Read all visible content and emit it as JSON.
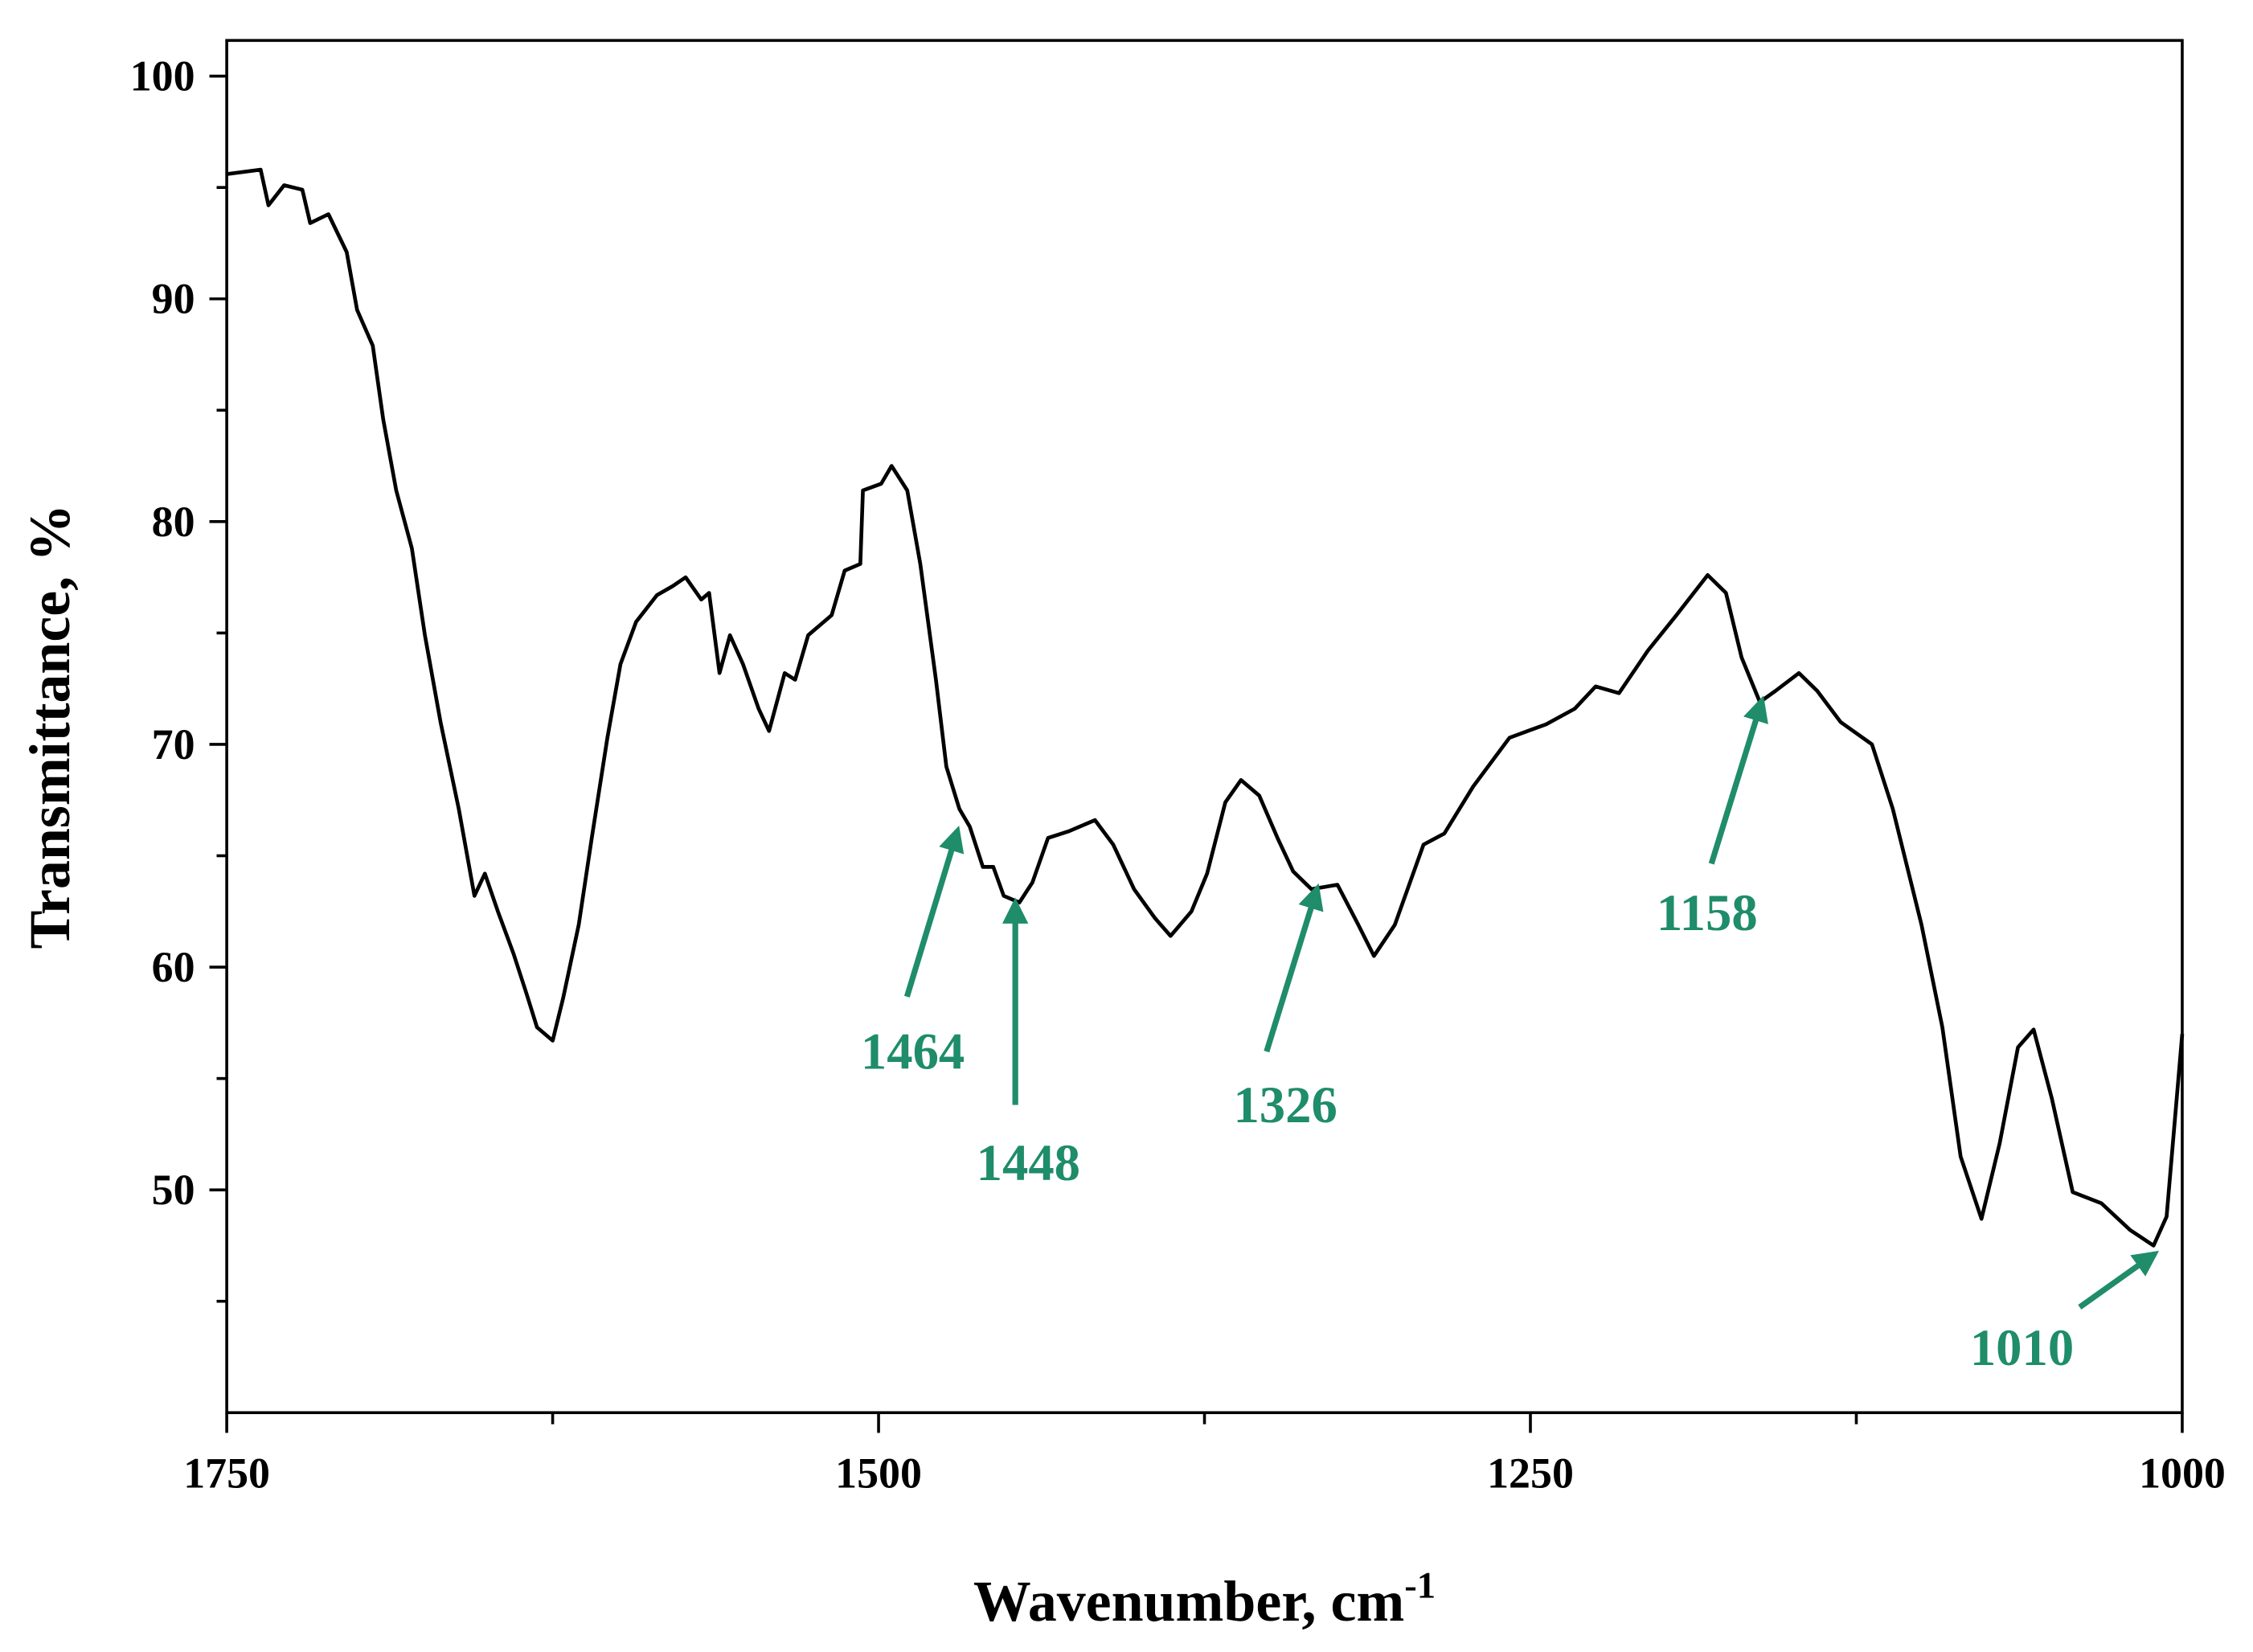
{
  "chart_data": {
    "type": "line",
    "x_label": "Wavenumber, cm",
    "x_label_sup": "-1",
    "y_label": "Transmittance, %",
    "xlim": [
      1750,
      1000
    ],
    "ylim": [
      40,
      101.6
    ],
    "xticks": [
      1750,
      1500,
      1250,
      1000
    ],
    "xticks_minor": [
      1625,
      1375,
      1125
    ],
    "yticks": [
      50,
      60,
      70,
      80,
      90,
      100
    ],
    "yticks_minor": [
      45,
      55,
      65,
      75,
      85,
      95
    ],
    "series": [
      {
        "color": "#000000",
        "x": [
          1750,
          1737,
          1734,
          1728,
          1721,
          1718,
          1711,
          1704,
          1700,
          1694,
          1690,
          1685,
          1679,
          1674,
          1668,
          1661,
          1655,
          1651,
          1646,
          1640,
          1635,
          1631,
          1625,
          1621,
          1615,
          1610,
          1604,
          1599,
          1593,
          1585,
          1579,
          1574,
          1568,
          1565,
          1561,
          1557,
          1552,
          1546,
          1542,
          1536,
          1532,
          1527,
          1518,
          1513,
          1507,
          1506,
          1499,
          1495,
          1489,
          1484,
          1478,
          1474,
          1469,
          1465,
          1460,
          1456,
          1452,
          1446,
          1441,
          1435,
          1427,
          1417,
          1410,
          1402,
          1394,
          1388,
          1380,
          1374,
          1367,
          1361,
          1354,
          1347,
          1341,
          1334,
          1324,
          1316,
          1310,
          1302,
          1291,
          1283,
          1272,
          1258,
          1244,
          1233,
          1225,
          1216,
          1205,
          1194,
          1182,
          1175,
          1169,
          1162,
          1156,
          1147,
          1140,
          1131,
          1119,
          1111,
          1100,
          1092,
          1085,
          1077,
          1070,
          1063,
          1057,
          1050,
          1042,
          1031,
          1020,
          1011,
          1006,
          1000
        ],
        "values": [
          95.6,
          95.8,
          94.2,
          95.1,
          94.9,
          93.4,
          93.8,
          92.1,
          89.5,
          87.9,
          84.6,
          81.4,
          78.8,
          74.9,
          71.0,
          67.1,
          63.2,
          64.2,
          62.5,
          60.6,
          58.8,
          57.3,
          56.7,
          58.6,
          61.9,
          65.8,
          70.3,
          73.6,
          75.5,
          76.7,
          77.1,
          77.5,
          76.5,
          76.8,
          73.2,
          74.9,
          73.6,
          71.6,
          70.6,
          73.2,
          72.9,
          74.9,
          75.8,
          77.8,
          78.1,
          81.4,
          81.7,
          82.5,
          81.4,
          78.1,
          72.9,
          69.0,
          67.1,
          66.3,
          64.5,
          64.5,
          63.2,
          62.9,
          63.8,
          65.8,
          66.1,
          66.6,
          65.5,
          63.5,
          62.2,
          61.4,
          62.5,
          64.2,
          67.4,
          68.4,
          67.7,
          65.8,
          64.3,
          63.5,
          63.7,
          61.9,
          60.5,
          61.9,
          65.5,
          66.0,
          68.1,
          70.3,
          70.9,
          71.6,
          72.6,
          72.3,
          74.2,
          75.8,
          77.6,
          76.8,
          73.9,
          71.9,
          72.4,
          73.2,
          72.4,
          71.0,
          70.0,
          67.1,
          61.9,
          57.3,
          51.5,
          48.7,
          52.1,
          56.4,
          57.2,
          54.1,
          49.9,
          49.4,
          48.2,
          47.5,
          48.8,
          57.0
        ]
      }
    ],
    "annotations": [
      "1464",
      "1448",
      "1326",
      "1158",
      "1010"
    ],
    "annotation_color": "#1f8c6a"
  }
}
